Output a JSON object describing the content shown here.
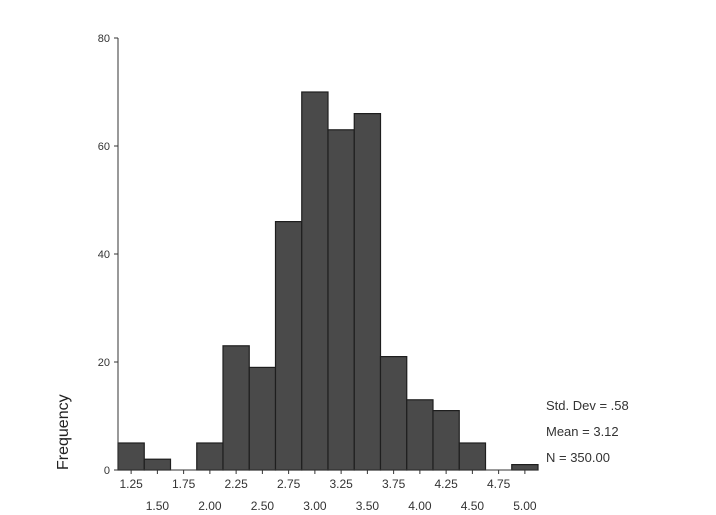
{
  "chart_data": {
    "type": "bar",
    "title": "",
    "xlabel": "",
    "ylabel": "Frequency",
    "ylim": [
      0,
      80
    ],
    "y_ticks": [
      0,
      20,
      40,
      60,
      80
    ],
    "bin_width": 0.25,
    "bins": [
      {
        "center": 1.25,
        "value": 5
      },
      {
        "center": 1.5,
        "value": 2
      },
      {
        "center": 1.75,
        "value": 0
      },
      {
        "center": 2.0,
        "value": 5
      },
      {
        "center": 2.25,
        "value": 23
      },
      {
        "center": 2.5,
        "value": 19
      },
      {
        "center": 2.75,
        "value": 46
      },
      {
        "center": 3.0,
        "value": 70
      },
      {
        "center": 3.25,
        "value": 63
      },
      {
        "center": 3.5,
        "value": 66
      },
      {
        "center": 3.75,
        "value": 21
      },
      {
        "center": 4.0,
        "value": 13
      },
      {
        "center": 4.25,
        "value": 11
      },
      {
        "center": 4.5,
        "value": 5
      },
      {
        "center": 4.75,
        "value": 0
      },
      {
        "center": 5.0,
        "value": 1
      }
    ],
    "x_tick_labels_upper": [
      "1.25",
      "1.75",
      "2.25",
      "2.75",
      "3.25",
      "3.75",
      "4.25",
      "4.75"
    ],
    "x_tick_labels_lower": [
      "1.50",
      "2.00",
      "2.50",
      "3.00",
      "3.50",
      "4.00",
      "4.50",
      "5.00"
    ],
    "grid": false,
    "bar_color": "#4a4a4a",
    "bar_edge_color": "#1e1e1e",
    "stats": {
      "std_dev": "Std. Dev = .58",
      "mean": "Mean = 3.12",
      "n": "N = 350.00"
    }
  }
}
